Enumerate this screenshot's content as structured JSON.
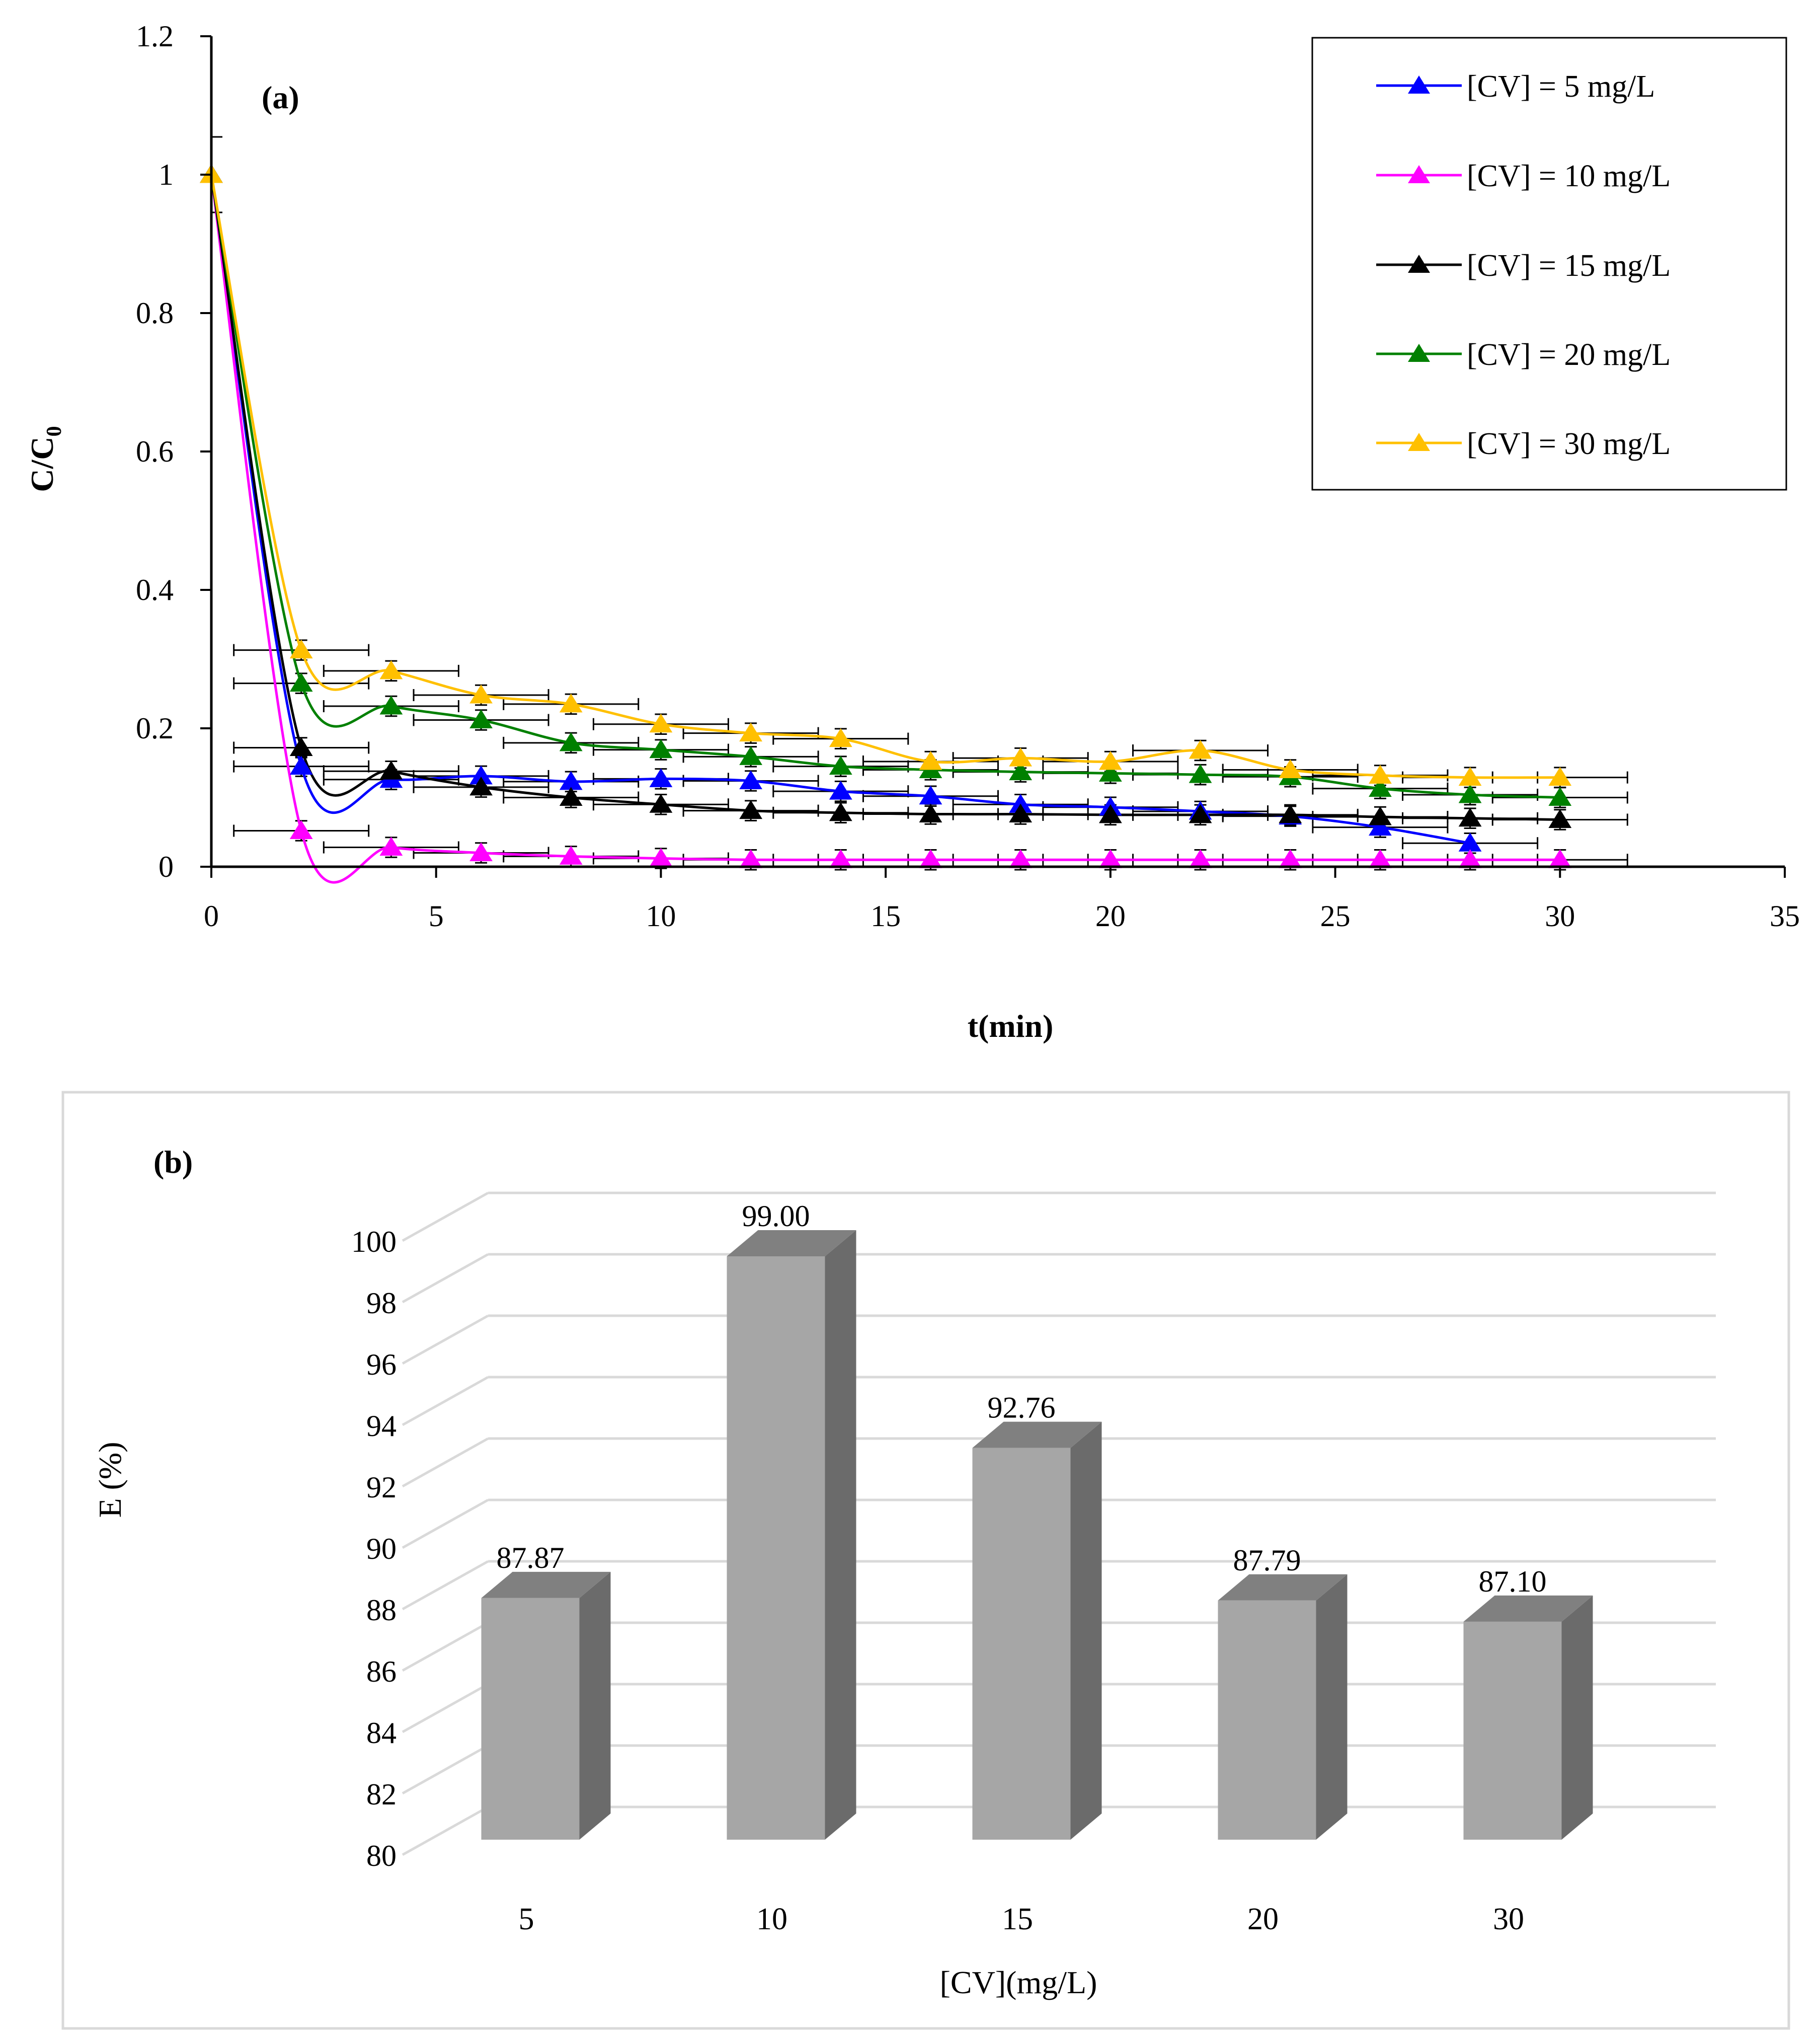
{
  "chart_data": [
    {
      "panel_label": "(a)",
      "type": "line",
      "xlabel": "t(min)",
      "ylabel": "C/C",
      "ylabel_sub": "0",
      "xlim": [
        0,
        35
      ],
      "ylim": [
        0,
        1.2
      ],
      "x_ticks": [
        "0",
        "5",
        "10",
        "15",
        "20",
        "25",
        "30",
        "35"
      ],
      "y_ticks": [
        "0",
        "0.2",
        "0.4",
        "0.6",
        "0.8",
        "1",
        "1.2"
      ],
      "x_tick_values": [
        0,
        5,
        10,
        15,
        20,
        25,
        30,
        35
      ],
      "y_tick_values": [
        0,
        0.2,
        0.4,
        0.6,
        0.8,
        1.0,
        1.2
      ],
      "legend_position": "top-right",
      "x_error": 1.5,
      "y_error": 0.01,
      "series": [
        {
          "name": "[CV] = 5 mg/L",
          "color": "#0000ff",
          "x": [
            0,
            2,
            4,
            6,
            8,
            10,
            12,
            14,
            16,
            18,
            20,
            22,
            24,
            26,
            28
          ],
          "y": [
            1.0,
            0.145,
            0.126,
            0.131,
            0.123,
            0.127,
            0.124,
            0.109,
            0.102,
            0.09,
            0.086,
            0.08,
            0.073,
            0.057,
            0.034
          ]
        },
        {
          "name": "[CV] = 10 mg/L",
          "color": "#ff00ff",
          "x": [
            0,
            2,
            4,
            6,
            8,
            10,
            12,
            14,
            16,
            18,
            20,
            22,
            24,
            26,
            28,
            30
          ],
          "y": [
            1.0,
            0.052,
            0.028,
            0.02,
            0.015,
            0.012,
            0.01,
            0.01,
            0.01,
            0.01,
            0.01,
            0.01,
            0.01,
            0.01,
            0.01,
            0.01
          ]
        },
        {
          "name": "[CV] = 15 mg/L",
          "color": "#000000",
          "x": [
            0,
            2,
            4,
            6,
            8,
            10,
            12,
            14,
            16,
            18,
            20,
            22,
            24,
            26,
            28,
            30
          ],
          "y": [
            1.0,
            0.172,
            0.138,
            0.115,
            0.1,
            0.09,
            0.081,
            0.078,
            0.076,
            0.076,
            0.075,
            0.075,
            0.075,
            0.072,
            0.07,
            0.068
          ]
        },
        {
          "name": "[CV] = 20 mg/L",
          "color": "#008000",
          "x": [
            0,
            2,
            4,
            6,
            8,
            10,
            12,
            14,
            16,
            18,
            20,
            22,
            24,
            26,
            28,
            30
          ],
          "y": [
            1.0,
            0.265,
            0.232,
            0.212,
            0.179,
            0.169,
            0.159,
            0.145,
            0.14,
            0.137,
            0.135,
            0.133,
            0.13,
            0.113,
            0.104,
            0.1
          ]
        },
        {
          "name": "[CV] = 30 mg/L",
          "color": "#ffc000",
          "x": [
            0,
            2,
            4,
            6,
            8,
            10,
            12,
            14,
            16,
            18,
            20,
            22,
            24,
            26,
            28,
            30
          ],
          "y": [
            1.0,
            0.313,
            0.283,
            0.248,
            0.235,
            0.206,
            0.193,
            0.185,
            0.152,
            0.157,
            0.152,
            0.168,
            0.14,
            0.132,
            0.129,
            0.129
          ]
        }
      ]
    },
    {
      "panel_label": "(b)",
      "type": "bar",
      "xlabel": "[CV](mg/L)",
      "ylabel": "E (%)",
      "categories": [
        "5",
        "10",
        "15",
        "20",
        "30"
      ],
      "values": [
        87.87,
        99.0,
        92.76,
        87.79,
        87.1
      ],
      "value_labels": [
        "87.87",
        "99.00",
        "92.76",
        "87.79",
        "87.10"
      ],
      "ylim": [
        80,
        100
      ],
      "y_ticks": [
        "80",
        "82",
        "84",
        "86",
        "88",
        "90",
        "92",
        "94",
        "96",
        "98",
        "100"
      ],
      "y_tick_values": [
        80,
        82,
        84,
        86,
        88,
        90,
        92,
        94,
        96,
        98,
        100
      ],
      "bar_color": "#a6a6a6",
      "bar_side_color": "#6b6b6b",
      "bar_top_color": "#808080"
    }
  ]
}
